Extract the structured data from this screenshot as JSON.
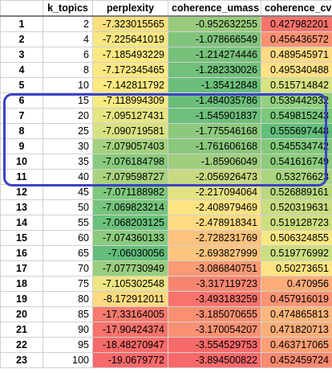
{
  "headers": [
    "",
    "k_topics",
    "perplexity",
    "coherence_umass",
    "coherence_cv"
  ],
  "rows": [
    {
      "idx": "1",
      "k": "2",
      "perplexity": "-7.323015565",
      "umass": "-0.952632255",
      "cv": "0.427982201",
      "colors": [
        "#f8e07f",
        "#98cc7c",
        "#f8736c"
      ]
    },
    {
      "idx": "2",
      "k": "4",
      "perplexity": "-7.225641019",
      "umass": "-1.078666549",
      "cv": "0.456436572",
      "colors": [
        "#f7e681",
        "#80c47c",
        "#fa9272"
      ]
    },
    {
      "idx": "3",
      "k": "6",
      "perplexity": "-7.185493229",
      "umass": "-1.214274446",
      "cv": "0.489545971",
      "colors": [
        "#fce883",
        "#78c17b",
        "#ffd983"
      ]
    },
    {
      "idx": "4",
      "k": "8",
      "perplexity": "-7.172345465",
      "umass": "-1.282330026",
      "cv": "0.495340488",
      "colors": [
        "#fce882",
        "#72c07b",
        "#ffe083"
      ]
    },
    {
      "idx": "5",
      "k": "10",
      "perplexity": "-7.142811792",
      "umass": "-1.35412848",
      "cv": "0.515714842",
      "colors": [
        "#fbe982",
        "#6cbf7b",
        "#d7e282"
      ]
    },
    {
      "idx": "6",
      "k": "15",
      "perplexity": "-7.118994309",
      "umass": "-1.484035786",
      "cv": "0.539442932",
      "colors": [
        "#f7ea83",
        "#6bbe7a",
        "#92d17e"
      ]
    },
    {
      "idx": "7",
      "k": "20",
      "perplexity": "-7.095127431",
      "umass": "-1.545901837",
      "cv": "0.549815243",
      "colors": [
        "#e6e683",
        "#6ebf7b",
        "#79c87c"
      ]
    },
    {
      "idx": "8",
      "k": "25",
      "perplexity": "-7.090719581",
      "umass": "-1.775546168",
      "cv": "0.555697448",
      "colors": [
        "#d9e282",
        "#8dc97d",
        "#63be7b"
      ]
    },
    {
      "idx": "9",
      "k": "30",
      "perplexity": "-7.079057403",
      "umass": "-1.761606168",
      "cv": "0.545534742",
      "colors": [
        "#a4d27f",
        "#8ac87d",
        "#82c97c"
      ]
    },
    {
      "idx": "10",
      "k": "35",
      "perplexity": "-7.076184798",
      "umass": "-1.85906049",
      "cv": "0.541616749",
      "colors": [
        "#88cb7e",
        "#a1ce7e",
        "#8ccc7d"
      ]
    },
    {
      "idx": "11",
      "k": "40",
      "perplexity": "-7.079598727",
      "umass": "-2.056926473",
      "cv": "0.53276623",
      "colors": [
        "#a9d37f",
        "#c8da81",
        "#aad680"
      ]
    },
    {
      "idx": "12",
      "k": "45",
      "perplexity": "-7.071188982",
      "umass": "-2.217094064",
      "cv": "0.526889161",
      "colors": [
        "#7fc97d",
        "#e3e283",
        "#b9d880"
      ]
    },
    {
      "idx": "13",
      "k": "50",
      "perplexity": "-7.069823214",
      "umass": "-2.408979469",
      "cv": "0.520319631",
      "colors": [
        "#76c57c",
        "#fde383",
        "#c9dd81"
      ]
    },
    {
      "idx": "14",
      "k": "55",
      "perplexity": "-7.068203125",
      "umass": "-2.478918341",
      "cv": "0.519128723",
      "colors": [
        "#6bc17b",
        "#fedb82",
        "#cedf81"
      ]
    },
    {
      "idx": "15",
      "k": "60",
      "perplexity": "-7.074360133",
      "umass": "-2.728231769",
      "cv": "0.506324855",
      "colors": [
        "#8acb7e",
        "#fdc27d",
        "#f8e883"
      ]
    },
    {
      "idx": "16",
      "k": "65",
      "perplexity": "-7.06030056",
      "umass": "-2.693827999",
      "cv": "0.519776992",
      "colors": [
        "#63be7b",
        "#fdc47d",
        "#cbde81"
      ]
    },
    {
      "idx": "17",
      "k": "70",
      "perplexity": "-7.077730949",
      "umass": "-3.086840751",
      "cv": "0.50273651",
      "colors": [
        "#9ace7f",
        "#fb9a74",
        "#ffe483"
      ]
    },
    {
      "idx": "18",
      "k": "75",
      "perplexity": "-7.105302548",
      "umass": "-3.317119723",
      "cv": "0.470956",
      "colors": [
        "#eee584",
        "#f98571",
        "#fdac78"
      ]
    },
    {
      "idx": "19",
      "k": "80",
      "perplexity": "-8.172912011",
      "umass": "-3.493183259",
      "cv": "0.457916019",
      "colors": [
        "#fcda81",
        "#f8736c",
        "#fb9473"
      ]
    },
    {
      "idx": "20",
      "k": "85",
      "perplexity": "-17.33164005",
      "umass": "-3.185070655",
      "cv": "0.474865813",
      "colors": [
        "#f87a6e",
        "#fa8f72",
        "#feb67a"
      ]
    },
    {
      "idx": "21",
      "k": "90",
      "perplexity": "-17.90424374",
      "umass": "-3.170054207",
      "cv": "0.471820713",
      "colors": [
        "#f8736c",
        "#fa9173",
        "#fdaf79"
      ]
    },
    {
      "idx": "22",
      "k": "95",
      "perplexity": "-18.48270947",
      "umass": "-3.554529753",
      "cv": "0.463717065",
      "colors": [
        "#f86b6a",
        "#f86b6a",
        "#fc9f75"
      ]
    },
    {
      "idx": "23",
      "k": "100",
      "perplexity": "-19.0679772",
      "umass": "-3.894500822",
      "cv": "0.452459724",
      "colors": [
        "#f8696b",
        "#f8696b",
        "#fa8a71"
      ]
    }
  ],
  "highlight": {
    "from_row": "6",
    "to_row": "11",
    "color": "#3a43c4"
  }
}
